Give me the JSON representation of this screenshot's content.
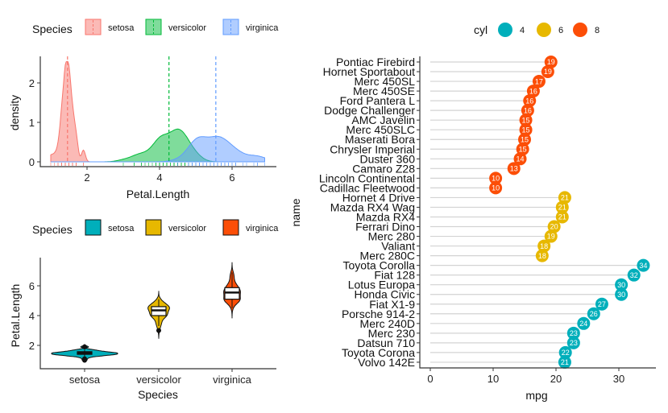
{
  "colors": {
    "setosa_density": "#F8766D",
    "versicolor_density": "#00BA38",
    "virginica_density": "#619CFF",
    "setosa_violin": "#00AFBB",
    "versicolor_violin": "#E7B800",
    "virginica_violin": "#FC4E07",
    "cyl4": "#00AFBB",
    "cyl6": "#E7B800",
    "cyl8": "#FC4E07"
  },
  "chart_data": [
    {
      "type": "density",
      "legend_title": "Species",
      "legend_position": "top",
      "xlabel": "Petal.Length",
      "ylabel": "density",
      "xticks": [
        2,
        4,
        6
      ],
      "yticks": [
        0,
        1,
        2
      ],
      "xlim": [
        1,
        6.9
      ],
      "ylim": [
        0,
        2.6
      ],
      "mean_lines": true,
      "rug": true,
      "series": [
        {
          "name": "setosa",
          "mean": 1.462,
          "values": [
            1.4,
            1.4,
            1.3,
            1.5,
            1.4,
            1.7,
            1.4,
            1.5,
            1.4,
            1.5,
            1.5,
            1.6,
            1.4,
            1.1,
            1.2,
            1.5,
            1.3,
            1.4,
            1.7,
            1.5,
            1.7,
            1.5,
            1.0,
            1.7,
            1.9,
            1.6,
            1.6,
            1.5,
            1.4,
            1.6,
            1.6,
            1.5,
            1.5,
            1.4,
            1.5,
            1.2,
            1.3,
            1.4,
            1.3,
            1.5,
            1.3,
            1.3,
            1.3,
            1.6,
            1.9,
            1.4,
            1.6,
            1.4,
            1.5,
            1.4
          ]
        },
        {
          "name": "versicolor",
          "mean": 4.26,
          "values": [
            4.7,
            4.5,
            4.9,
            4.0,
            4.6,
            4.5,
            4.7,
            3.3,
            4.6,
            3.9,
            3.5,
            4.2,
            4.0,
            4.7,
            3.6,
            4.4,
            4.5,
            4.1,
            4.5,
            3.9,
            4.8,
            4.0,
            4.9,
            4.7,
            4.3,
            4.4,
            4.8,
            5.0,
            4.5,
            3.5,
            3.8,
            3.7,
            3.9,
            5.1,
            4.5,
            4.5,
            4.7,
            4.4,
            4.1,
            4.0,
            4.4,
            4.6,
            4.0,
            3.3,
            4.2,
            4.2,
            4.2,
            4.3,
            3.0,
            4.1
          ]
        },
        {
          "name": "virginica",
          "mean": 5.552,
          "values": [
            6.0,
            5.1,
            5.9,
            5.6,
            5.8,
            6.6,
            4.5,
            6.3,
            5.8,
            6.1,
            5.1,
            5.3,
            5.5,
            5.0,
            5.1,
            5.3,
            5.5,
            6.7,
            6.9,
            5.0,
            5.7,
            4.9,
            6.7,
            4.9,
            5.7,
            6.0,
            4.8,
            4.9,
            5.6,
            5.8,
            6.1,
            6.4,
            5.6,
            5.1,
            5.6,
            6.1,
            5.6,
            5.5,
            4.8,
            5.4,
            5.6,
            5.1,
            5.1,
            5.9,
            5.7,
            5.2,
            5.0,
            5.2,
            5.4,
            5.1
          ]
        }
      ]
    },
    {
      "type": "violin",
      "legend_title": "Species",
      "legend_position": "top",
      "xlabel": "Species",
      "ylabel": "Petal.Length",
      "categories": [
        "setosa",
        "versicolor",
        "virginica"
      ],
      "yticks": [
        2,
        4,
        6
      ],
      "boxplot_inside": true
    },
    {
      "type": "dot",
      "legend_title": "cyl",
      "legend_position": "top",
      "legend_entries": [
        "4",
        "6",
        "8"
      ],
      "xlabel": "mpg",
      "ylabel": "name",
      "xticks": [
        0,
        10,
        20,
        30
      ],
      "xlim": [
        0,
        34
      ],
      "points": [
        {
          "name": "Pontiac Firebird",
          "mpg": 19.2,
          "cyl": "8",
          "label": "19"
        },
        {
          "name": "Hornet Sportabout",
          "mpg": 18.7,
          "cyl": "8",
          "label": "19"
        },
        {
          "name": "Merc 450SL",
          "mpg": 17.3,
          "cyl": "8",
          "label": "17"
        },
        {
          "name": "Merc 450SE",
          "mpg": 16.4,
          "cyl": "8",
          "label": "16"
        },
        {
          "name": "Ford Pantera L",
          "mpg": 15.8,
          "cyl": "8",
          "label": "16"
        },
        {
          "name": "Dodge Challenger",
          "mpg": 15.5,
          "cyl": "8",
          "label": "16"
        },
        {
          "name": "AMC Javelin",
          "mpg": 15.2,
          "cyl": "8",
          "label": "15"
        },
        {
          "name": "Merc 450SLC",
          "mpg": 15.2,
          "cyl": "8",
          "label": "15"
        },
        {
          "name": "Maserati Bora",
          "mpg": 15.0,
          "cyl": "8",
          "label": "15"
        },
        {
          "name": "Chrysler Imperial",
          "mpg": 14.7,
          "cyl": "8",
          "label": "15"
        },
        {
          "name": "Duster 360",
          "mpg": 14.3,
          "cyl": "8",
          "label": "14"
        },
        {
          "name": "Camaro Z28",
          "mpg": 13.3,
          "cyl": "8",
          "label": "13"
        },
        {
          "name": "Lincoln Continental",
          "mpg": 10.4,
          "cyl": "8",
          "label": "10"
        },
        {
          "name": "Cadillac Fleetwood",
          "mpg": 10.4,
          "cyl": "8",
          "label": "10"
        },
        {
          "name": "Hornet 4 Drive",
          "mpg": 21.4,
          "cyl": "6",
          "label": "21"
        },
        {
          "name": "Mazda RX4 Wag",
          "mpg": 21.0,
          "cyl": "6",
          "label": "21"
        },
        {
          "name": "Mazda RX4",
          "mpg": 21.0,
          "cyl": "6",
          "label": "21"
        },
        {
          "name": "Ferrari Dino",
          "mpg": 19.7,
          "cyl": "6",
          "label": "20"
        },
        {
          "name": "Merc 280",
          "mpg": 19.2,
          "cyl": "6",
          "label": "19"
        },
        {
          "name": "Valiant",
          "mpg": 18.1,
          "cyl": "6",
          "label": "18"
        },
        {
          "name": "Merc 280C",
          "mpg": 17.8,
          "cyl": "6",
          "label": "18"
        },
        {
          "name": "Toyota Corolla",
          "mpg": 33.9,
          "cyl": "4",
          "label": "34"
        },
        {
          "name": "Fiat 128",
          "mpg": 32.4,
          "cyl": "4",
          "label": "32"
        },
        {
          "name": "Lotus Europa",
          "mpg": 30.4,
          "cyl": "4",
          "label": "30"
        },
        {
          "name": "Honda Civic",
          "mpg": 30.4,
          "cyl": "4",
          "label": "30"
        },
        {
          "name": "Fiat X1-9",
          "mpg": 27.3,
          "cyl": "4",
          "label": "27"
        },
        {
          "name": "Porsche 914-2",
          "mpg": 26.0,
          "cyl": "4",
          "label": "26"
        },
        {
          "name": "Merc 240D",
          "mpg": 24.4,
          "cyl": "4",
          "label": "24"
        },
        {
          "name": "Merc 230",
          "mpg": 22.8,
          "cyl": "4",
          "label": "23"
        },
        {
          "name": "Datsun 710",
          "mpg": 22.8,
          "cyl": "4",
          "label": "23"
        },
        {
          "name": "Toyota Corona",
          "mpg": 21.5,
          "cyl": "4",
          "label": "22"
        },
        {
          "name": "Volvo 142E",
          "mpg": 21.4,
          "cyl": "4",
          "label": "21"
        }
      ]
    }
  ]
}
